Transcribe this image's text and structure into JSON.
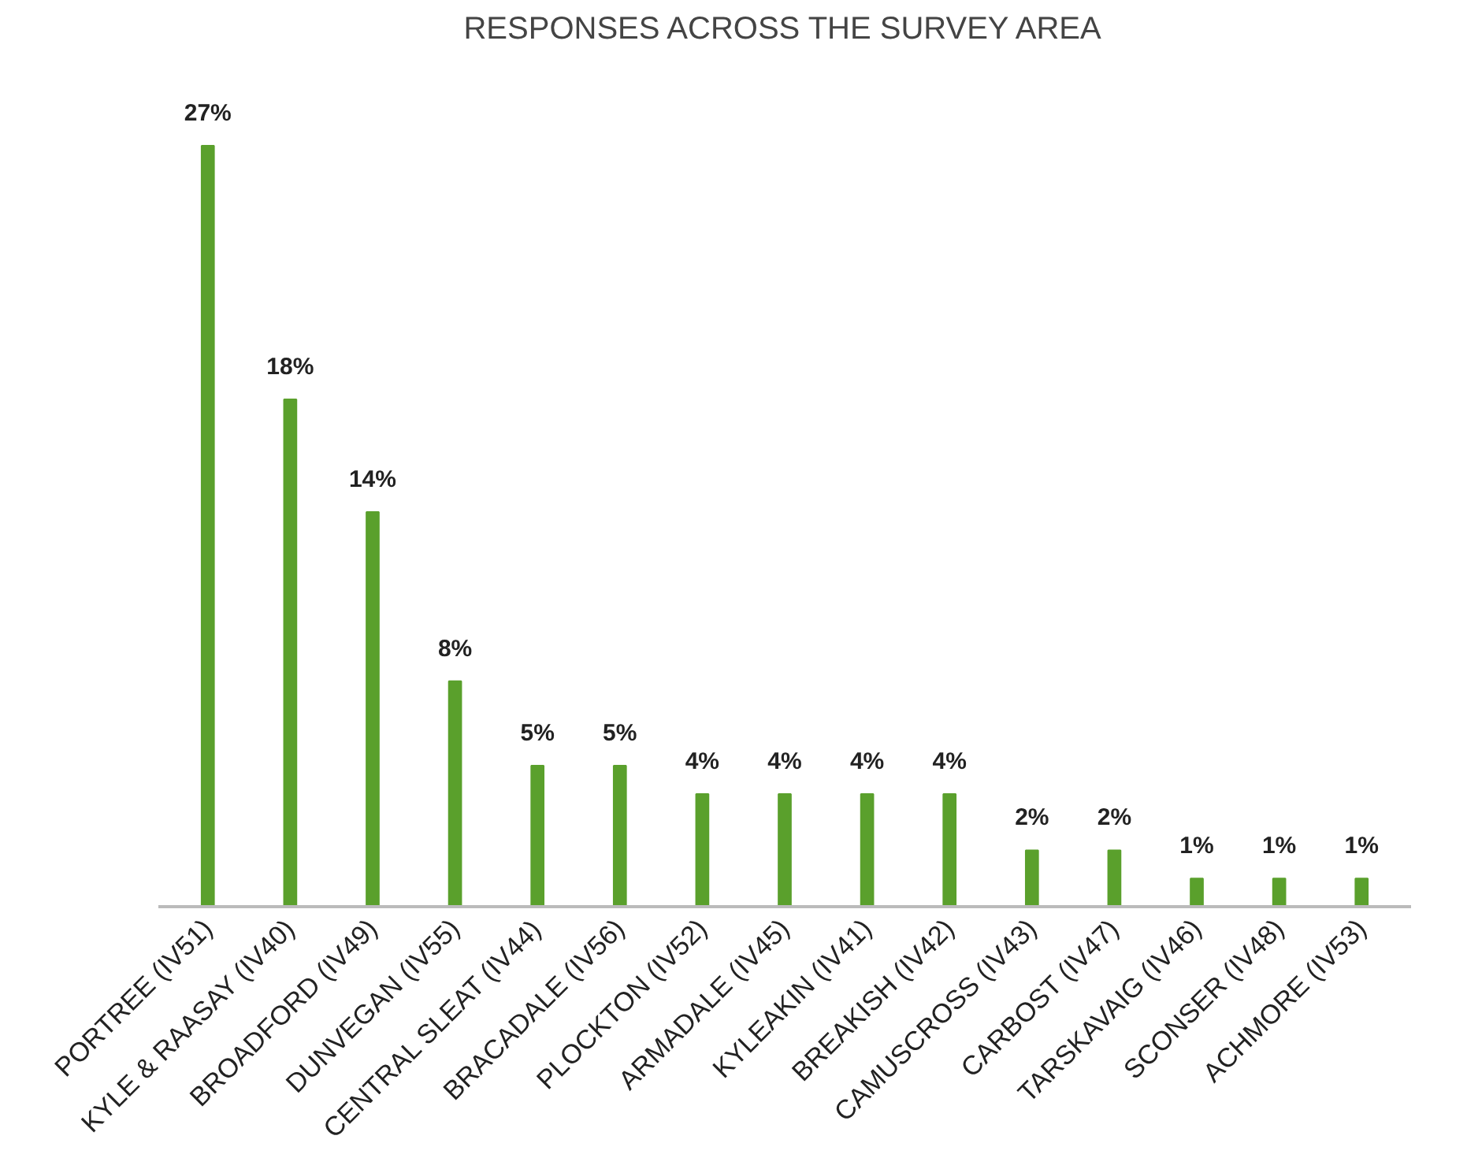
{
  "chart_data": {
    "type": "bar",
    "title": "RESPONSES ACROSS THE SURVEY AREA",
    "categories": [
      "PORTREE (IV51)",
      "KYLE & RAASAY (IV40)",
      "BROADFORD (IV49)",
      "DUNVEGAN (IV55)",
      "CENTRAL SLEAT (IV44)",
      "BRACADALE (IV56)",
      "PLOCKTON (IV52)",
      "ARMADALE (IV45)",
      "KYLEAKIN (IV41)",
      "BREAKISH (IV42)",
      "CAMUSCROSS (IV43)",
      "CARBOST (IV47)",
      "TARSKAVAIG (IV46)",
      "SCONSER (IV48)",
      "ACHMORE (IV53)"
    ],
    "values": [
      27,
      18,
      14,
      8,
      5,
      5,
      4,
      4,
      4,
      4,
      2,
      2,
      1,
      1,
      1
    ],
    "value_labels": [
      "27%",
      "18%",
      "14%",
      "8%",
      "5%",
      "5%",
      "4%",
      "4%",
      "4%",
      "4%",
      "2%",
      "2%",
      "1%",
      "1%",
      "1%"
    ],
    "color": "#5aa02c",
    "grid": false
  }
}
